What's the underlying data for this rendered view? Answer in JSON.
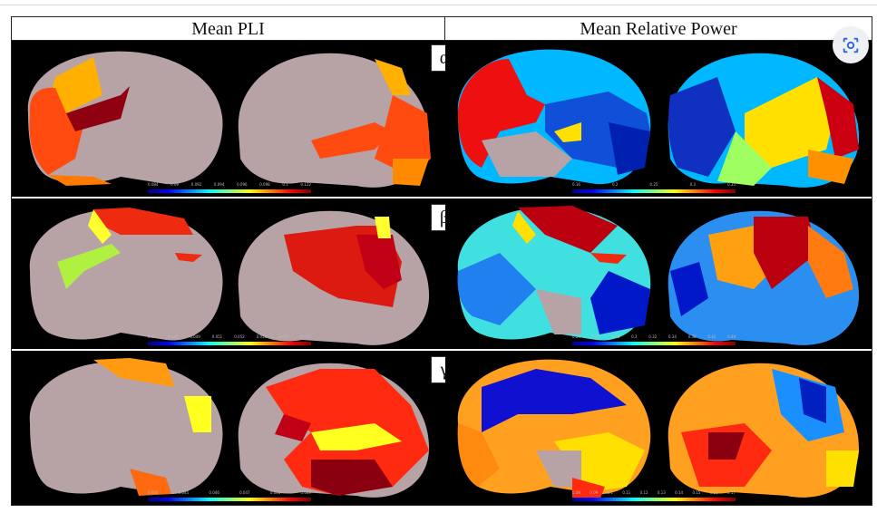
{
  "columns": {
    "left_title": "Mean PLI",
    "right_title": "Mean Relative Power"
  },
  "bands": [
    {
      "symbol": "α",
      "left_ticks": [
        "0.084",
        "0.09",
        "0.092",
        "0.094",
        "0.096",
        "0.098",
        "0.1",
        "0.122"
      ],
      "right_ticks": [
        "0.16",
        "0.2",
        "0.25",
        "0.3",
        "0.35"
      ]
    },
    {
      "symbol": "β",
      "left_ticks": [
        "0.04",
        "0.045",
        "0.049",
        "0.051",
        "0.052",
        "0.053",
        "0.055",
        "0.056"
      ],
      "right_ticks": [
        "0.24",
        "0.25",
        "0.28",
        "0.3",
        "0.32",
        "0.34",
        "0.38",
        "0.42",
        "0.44"
      ]
    },
    {
      "symbol": "γ",
      "left_ticks": [
        "0.044",
        "0.045",
        "0.046",
        "0.047",
        "0.048",
        "0.049"
      ],
      "right_ticks": [
        "0.08",
        "0.09",
        "0.1",
        "0.11",
        "0.12",
        "0.13",
        "0.14",
        "0.15",
        "0.16",
        "0.17"
      ]
    }
  ],
  "colors": {
    "brain_gray": "#b7a2a6",
    "jet": [
      "#00008f",
      "#0000ff",
      "#0080ff",
      "#00ffff",
      "#80ff80",
      "#ffff00",
      "#ff8000",
      "#ff0000",
      "#800000"
    ]
  },
  "icons": {
    "lens": "image-search-icon"
  }
}
